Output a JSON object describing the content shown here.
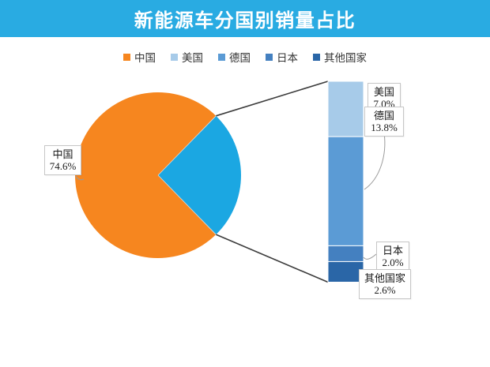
{
  "header": {
    "title": "新能源车分国别销量占比",
    "background": "#29ABE2",
    "text_color": "#FFFFFF"
  },
  "chart_data": {
    "type": "bar_of_pie",
    "title": "新能源车分国别销量占比",
    "unit": "%",
    "categories": [
      "中国",
      "美国",
      "德国",
      "日本",
      "其他国家"
    ],
    "values": [
      74.6,
      7.0,
      13.8,
      2.0,
      2.6
    ],
    "value_labels": [
      "74.6%",
      "7.0%",
      "13.8%",
      "2.0%",
      "2.6%"
    ],
    "series_colors": [
      "#F6861F",
      "#A7CBE9",
      "#5B9BD5",
      "#4480C0",
      "#2A66A7"
    ],
    "pie_breakout_color": "#1BA7E2",
    "connector_color": "#3C3C3C",
    "leader_color": "#9A9A9A",
    "legend_position": "top",
    "notes": "pie slice 中国 74.6% orange; remaining 25.4% cyan slice expanded into stacked bar of 美国/德国/日本/其他国家"
  }
}
